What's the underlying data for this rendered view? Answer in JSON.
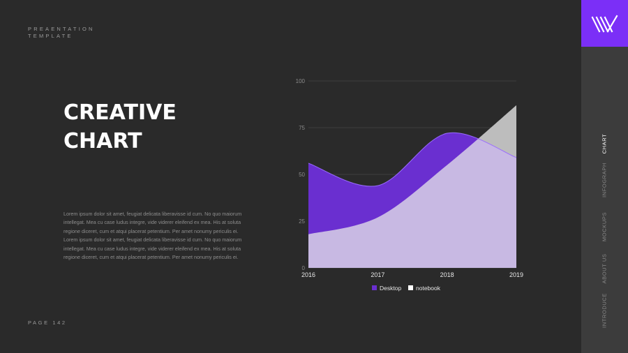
{
  "header": {
    "brand_line1": "PREAENTATION",
    "brand_line2": "TEMPLATE"
  },
  "title": {
    "line1": "CREATIVE",
    "line2": "CHART"
  },
  "body_text": "Lorem ipsum dolor sit amet, feugiat delicata liberavisse id cum. No quo maiorum intellegat. Mea cu case ludus integre, vide viderer eleifend ex mea. His at soluta regione diceret, cum et atqui placerat petentium. Per amet nonumy periculis ei. Lorem ipsum dolor sit amet, feugiat delicata liberavisse id cum. No quo maiorum intellegat. Mea cu case ludus integre, vide viderer eleifend ex mea. His at soluta regione diceret, cum et atqui placerat petentium. Per amet nonumy periculis ei.",
  "footer": {
    "page_label": "PAGE 142"
  },
  "sidebar": {
    "accent": "#7b2ff7",
    "items": [
      {
        "label": "CHART",
        "active": true
      },
      {
        "label": "INFOGRAPH",
        "active": false
      },
      {
        "label": "MOCKUPS",
        "active": false
      },
      {
        "label": "ABOUT US",
        "active": false
      },
      {
        "label": "INTRODUCE",
        "active": false
      }
    ]
  },
  "chart_data": {
    "type": "area",
    "x": [
      2016,
      2017,
      2018,
      2019
    ],
    "x_ticks": [
      "2016",
      "2017",
      "2018",
      "2019"
    ],
    "y_ticks": [
      0,
      25,
      50,
      75,
      100
    ],
    "ylim": [
      0,
      100
    ],
    "grid": true,
    "legend_placement": "bottom",
    "series": [
      {
        "name": "Desktop",
        "values": [
          56,
          44,
          72,
          59
        ],
        "color": "#6a2fd0",
        "line_color": "#9a6cff"
      },
      {
        "name": "notebook",
        "values": [
          18,
          27,
          55,
          87
        ],
        "color": "#c8b9e3",
        "overflow_color": "#bdbdbd"
      }
    ]
  }
}
